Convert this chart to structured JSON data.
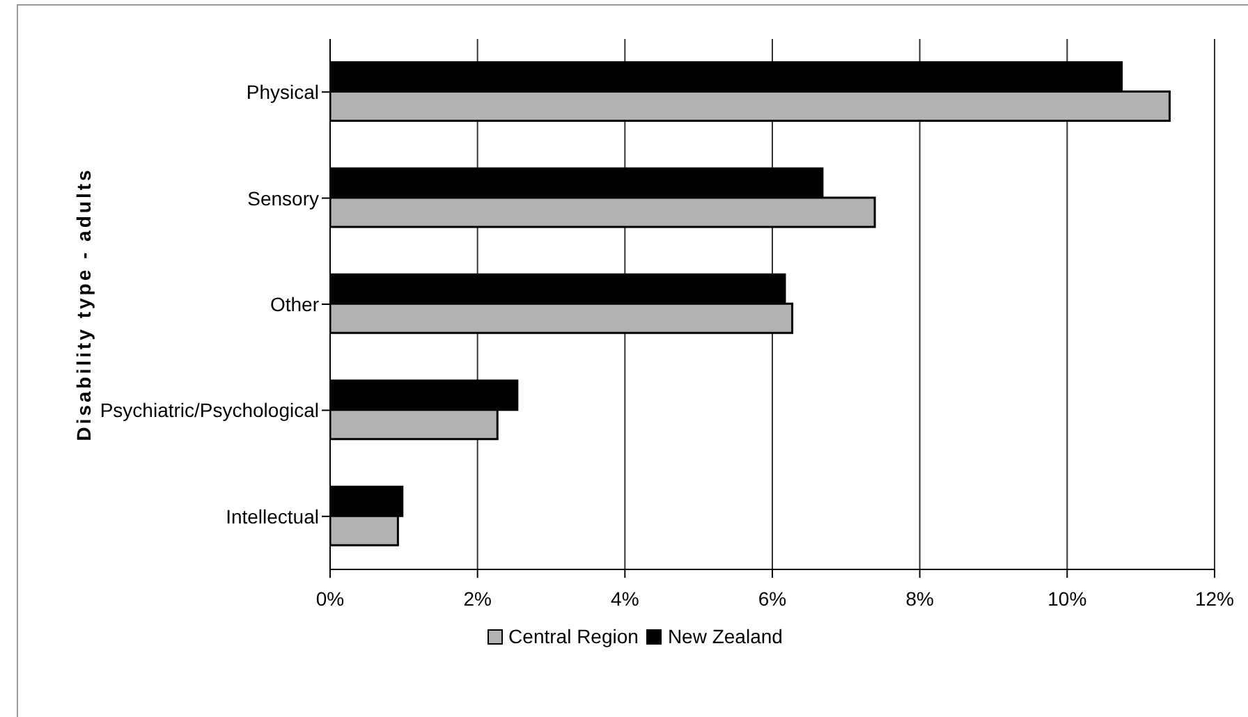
{
  "chart_data": {
    "type": "bar",
    "orientation": "horizontal",
    "ylabel": "Disability type - adults",
    "categories": [
      "Physical",
      "Sensory",
      "Other",
      "Psychiatric/Psychological",
      "Intellectual"
    ],
    "series": [
      {
        "name": "Central Region",
        "color": "#b2b2b2",
        "values": [
          11.39,
          7.39,
          6.27,
          2.27,
          0.92
        ]
      },
      {
        "name": "New  Zealand",
        "color": "#000000",
        "values": [
          10.74,
          6.68,
          6.17,
          2.54,
          0.98
        ]
      }
    ],
    "xlim": [
      0,
      12
    ],
    "xticks": [
      {
        "value": 0,
        "label": "0%"
      },
      {
        "value": 2,
        "label": "2%"
      },
      {
        "value": 4,
        "label": "4%"
      },
      {
        "value": 6,
        "label": "6%"
      },
      {
        "value": 8,
        "label": "8%"
      },
      {
        "value": 10,
        "label": "10%"
      },
      {
        "value": 12,
        "label": "12%"
      }
    ],
    "grid": "x",
    "legend": "bottom"
  }
}
